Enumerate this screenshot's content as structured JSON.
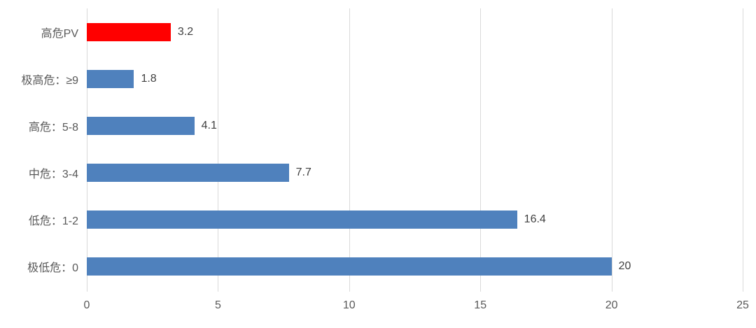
{
  "chart_data": {
    "type": "bar",
    "orientation": "horizontal",
    "title": "",
    "xlabel": "",
    "ylabel": "",
    "categories": [
      "高危PV",
      "极高危：≥9",
      "高危：5-8",
      "中危：3-4",
      "低危：1-2",
      "极低危：0"
    ],
    "values": [
      3.2,
      1.8,
      4.1,
      7.7,
      16.4,
      20
    ],
    "value_labels": [
      "3.2",
      "1.8",
      "4.1",
      "7.7",
      "16.4",
      "20"
    ],
    "bar_colors": [
      "#FF0000",
      "#4F81BD",
      "#4F81BD",
      "#4F81BD",
      "#4F81BD",
      "#4F81BD"
    ],
    "xlim": [
      0,
      25
    ],
    "x_ticks": [
      0,
      5,
      10,
      15,
      20,
      25
    ],
    "x_tick_labels": [
      "0",
      "5",
      "10",
      "15",
      "20",
      "25"
    ],
    "grid": "vertical-gridlines-only",
    "legend": "none",
    "colors": {
      "default_bar": "#4F81BD",
      "highlight_bar": "#FF0000",
      "gridline": "#D9D9D9",
      "axis_text": "#595959",
      "data_label_text": "#404040",
      "background": "#FFFFFF"
    }
  }
}
